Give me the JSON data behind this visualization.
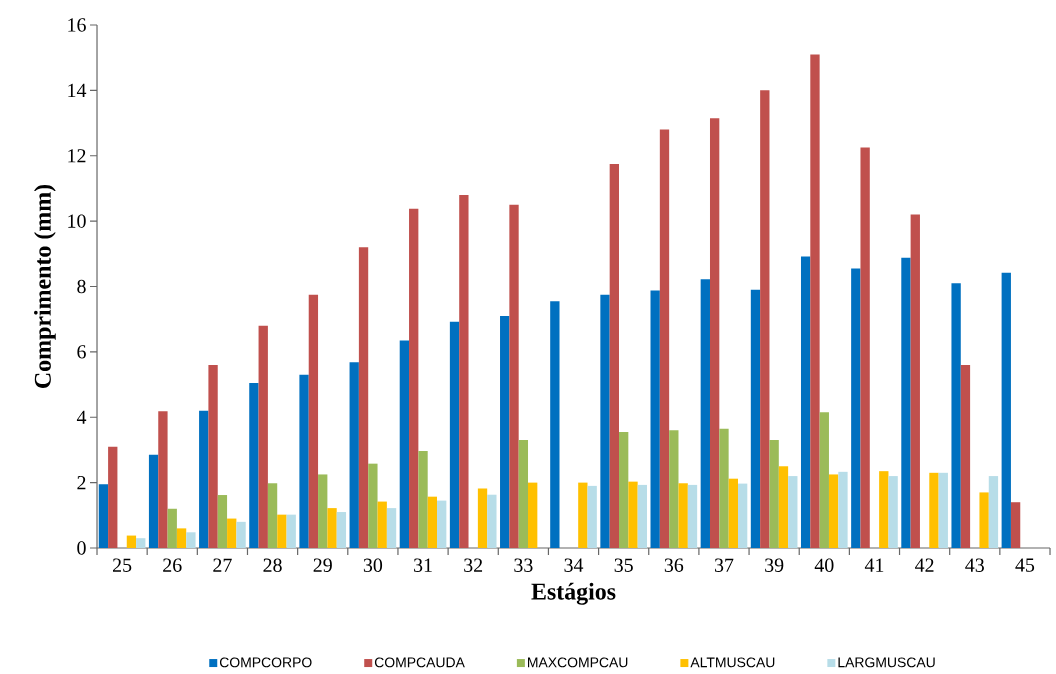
{
  "chart_data": {
    "type": "bar",
    "xlabel": "Estágios",
    "ylabel": "Comprimento (mm)",
    "categories": [
      "25",
      "26",
      "27",
      "28",
      "29",
      "30",
      "31",
      "32",
      "33",
      "34",
      "35",
      "36",
      "37",
      "39",
      "40",
      "41",
      "42",
      "43",
      "45"
    ],
    "ylim": [
      0,
      16
    ],
    "yticks": [
      0,
      2,
      4,
      6,
      8,
      10,
      12,
      14,
      16
    ],
    "legend": "bottom",
    "series": [
      {
        "name": "COMPCORPO",
        "color": "#0070c0",
        "values": [
          1.95,
          2.85,
          4.2,
          5.05,
          5.3,
          5.68,
          6.35,
          6.92,
          7.1,
          7.55,
          7.75,
          7.88,
          8.22,
          7.9,
          8.92,
          8.55,
          8.88,
          8.1,
          8.42
        ]
      },
      {
        "name": "COMPCAUDA",
        "color": "#c0504d",
        "values": [
          3.1,
          4.18,
          5.6,
          6.8,
          7.75,
          9.2,
          10.38,
          10.8,
          10.5,
          null,
          11.75,
          12.8,
          13.15,
          14.0,
          15.1,
          12.25,
          10.2,
          5.6,
          1.4
        ]
      },
      {
        "name": "MAXCOMPCAU",
        "color": "#9bbb59",
        "values": [
          null,
          1.2,
          1.62,
          1.98,
          2.25,
          2.58,
          2.97,
          null,
          3.3,
          null,
          3.55,
          3.6,
          3.65,
          3.3,
          4.15,
          null,
          null,
          null,
          null
        ]
      },
      {
        "name": "ALTMUSCAU",
        "color": "#ffc000",
        "values": [
          0.38,
          0.6,
          0.9,
          1.02,
          1.22,
          1.42,
          1.57,
          1.82,
          2.0,
          2.0,
          2.03,
          1.98,
          2.12,
          2.5,
          2.25,
          2.35,
          2.3,
          1.7,
          null
        ]
      },
      {
        "name": "LARGMUSCAU",
        "color": "#b7dde8",
        "values": [
          0.3,
          0.48,
          0.8,
          1.02,
          1.1,
          1.22,
          1.45,
          1.63,
          null,
          1.9,
          1.93,
          1.93,
          1.97,
          2.2,
          2.33,
          2.2,
          2.3,
          2.2,
          null
        ]
      }
    ]
  }
}
